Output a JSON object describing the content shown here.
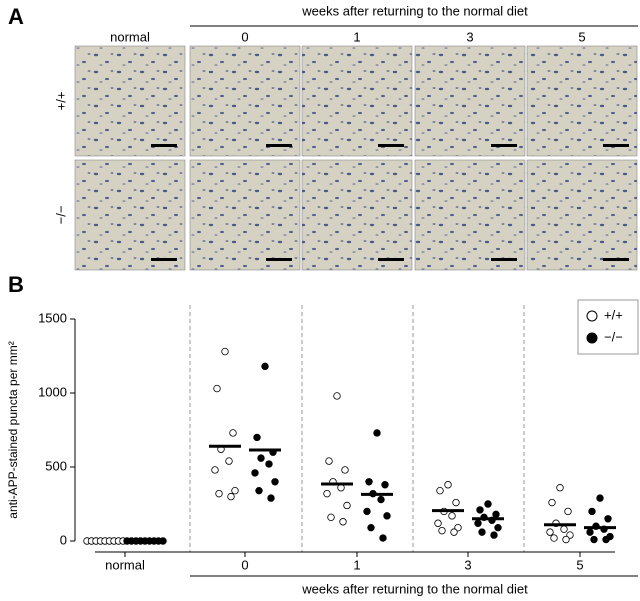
{
  "panel_a": {
    "label": "A",
    "header_title": "weeks after returning to the normal diet",
    "columns": [
      "normal",
      "0",
      "1",
      "3",
      "5"
    ],
    "rows": [
      "+/+",
      "−/−"
    ]
  },
  "chart_data": {
    "type": "strip",
    "panel_label": "B",
    "ylabel": "anti-APP-stained puncta per mm²",
    "xlabel": "weeks after returning to the normal diet",
    "categories": [
      "normal",
      "0",
      "1",
      "3",
      "5"
    ],
    "ylim": [
      0,
      1500
    ],
    "yticks": [
      0,
      500,
      1000,
      1500
    ],
    "legend": "top-right",
    "series": [
      {
        "name": "+/+",
        "color": "#ffffff",
        "values": [
          [
            0,
            0,
            0,
            0,
            0,
            0,
            0,
            0,
            0
          ],
          [
            1280,
            1030,
            730,
            620,
            540,
            480,
            340,
            320,
            300
          ],
          [
            980,
            540,
            480,
            400,
            360,
            320,
            240,
            160,
            130
          ],
          [
            380,
            340,
            260,
            200,
            170,
            120,
            90,
            70,
            60
          ],
          [
            360,
            260,
            200,
            120,
            80,
            60,
            40,
            20,
            10
          ]
        ],
        "means": [
          null,
          640,
          385,
          205,
          110
        ]
      },
      {
        "name": "−/−",
        "color": "#000000",
        "values": [
          [
            0,
            0,
            0,
            0,
            0,
            0,
            0,
            0,
            0
          ],
          [
            1180,
            700,
            600,
            560,
            520,
            460,
            400,
            340,
            290
          ],
          [
            730,
            400,
            380,
            320,
            280,
            200,
            170,
            90,
            20
          ],
          [
            250,
            210,
            180,
            160,
            140,
            120,
            90,
            60,
            40
          ],
          [
            290,
            200,
            150,
            100,
            80,
            60,
            30,
            10,
            10
          ]
        ],
        "means": [
          null,
          615,
          315,
          150,
          90
        ]
      }
    ]
  }
}
